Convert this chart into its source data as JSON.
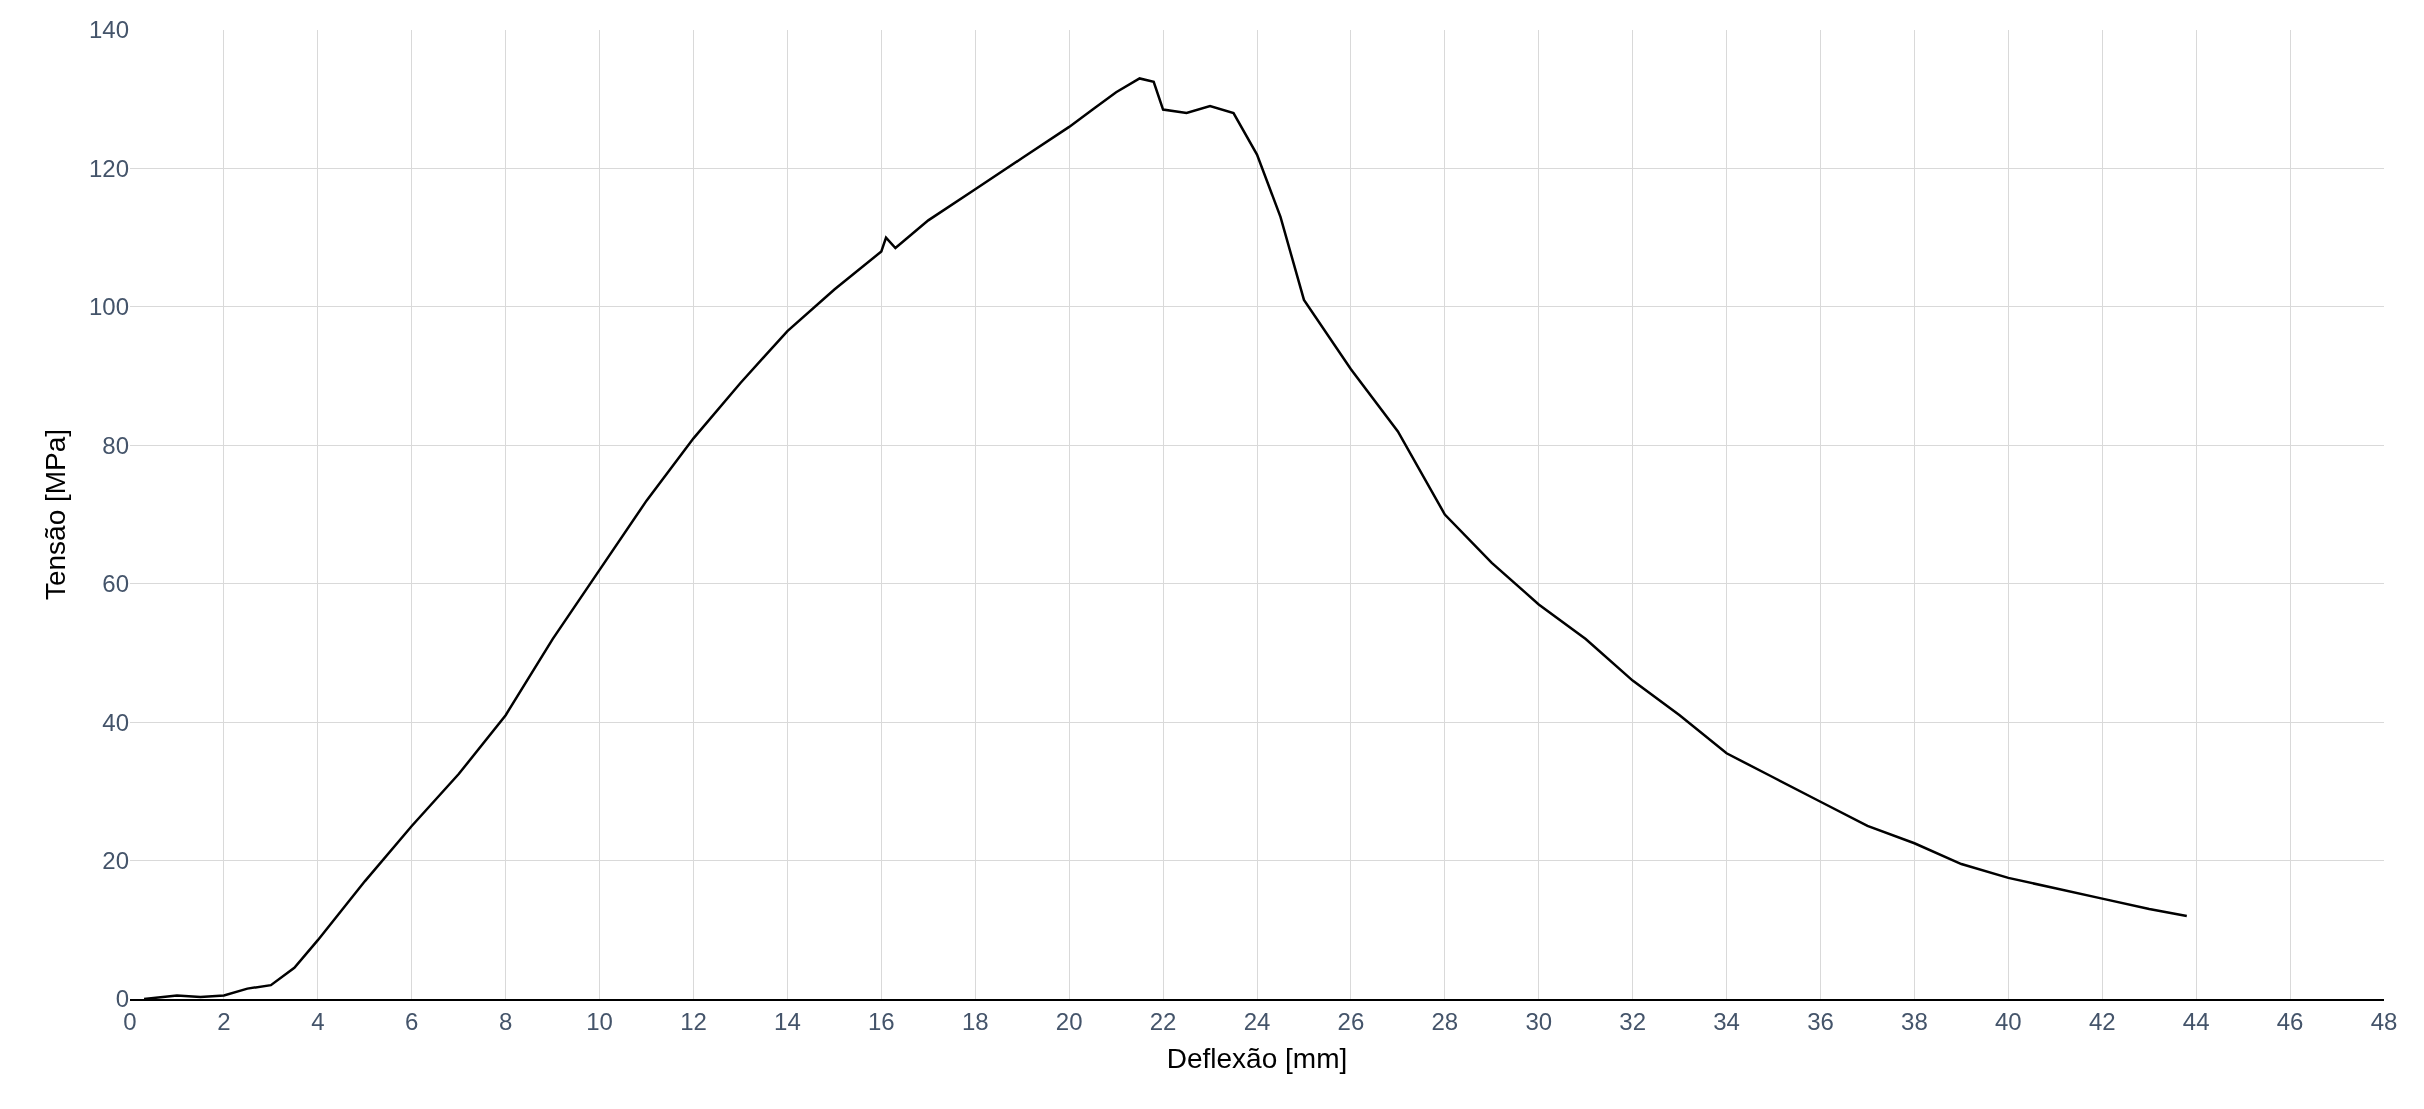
{
  "chart_data": {
    "type": "line",
    "xlabel": "Deflexão [mm]",
    "ylabel": "Tensão [MPa]",
    "x": [
      0.3,
      1,
      1.5,
      2,
      2.5,
      3,
      3.5,
      4,
      5,
      6,
      7,
      8,
      9,
      10,
      11,
      12,
      13,
      14,
      15,
      16,
      16.1,
      16.3,
      17,
      18,
      19,
      20,
      20.5,
      21,
      21.5,
      21.8,
      22,
      22.5,
      23,
      23.5,
      24,
      24.5,
      25,
      26,
      27,
      28,
      29,
      30,
      31,
      32,
      33,
      34,
      35,
      36,
      37,
      38,
      39,
      40,
      41,
      42,
      43,
      43.8
    ],
    "series": [
      {
        "color": "#000000",
        "values": [
          0,
          0.5,
          0.3,
          0.5,
          1.5,
          2,
          4.5,
          8.5,
          17,
          25,
          32.5,
          41,
          52,
          62,
          72,
          81,
          89,
          96.5,
          102.5,
          108,
          110,
          108.5,
          112.5,
          117,
          121.5,
          126,
          128.5,
          131,
          133,
          132.5,
          128.5,
          128,
          129,
          128,
          122,
          113,
          101,
          91,
          82,
          70,
          63,
          57,
          52,
          46,
          41,
          35.5,
          32,
          28.5,
          25,
          22.5,
          19.5,
          17.5,
          16,
          14.5,
          13,
          12
        ]
      }
    ],
    "xlim": [
      0,
      48
    ],
    "xticks": [
      0,
      2,
      4,
      6,
      8,
      10,
      12,
      14,
      16,
      18,
      20,
      22,
      24,
      26,
      28,
      30,
      32,
      34,
      36,
      38,
      40,
      42,
      44,
      46,
      48
    ],
    "ylim": [
      0,
      140
    ],
    "yticks": [
      0,
      20,
      40,
      60,
      80,
      100,
      120,
      140
    ],
    "grid": true,
    "marker": "none",
    "line_style": "solid"
  }
}
